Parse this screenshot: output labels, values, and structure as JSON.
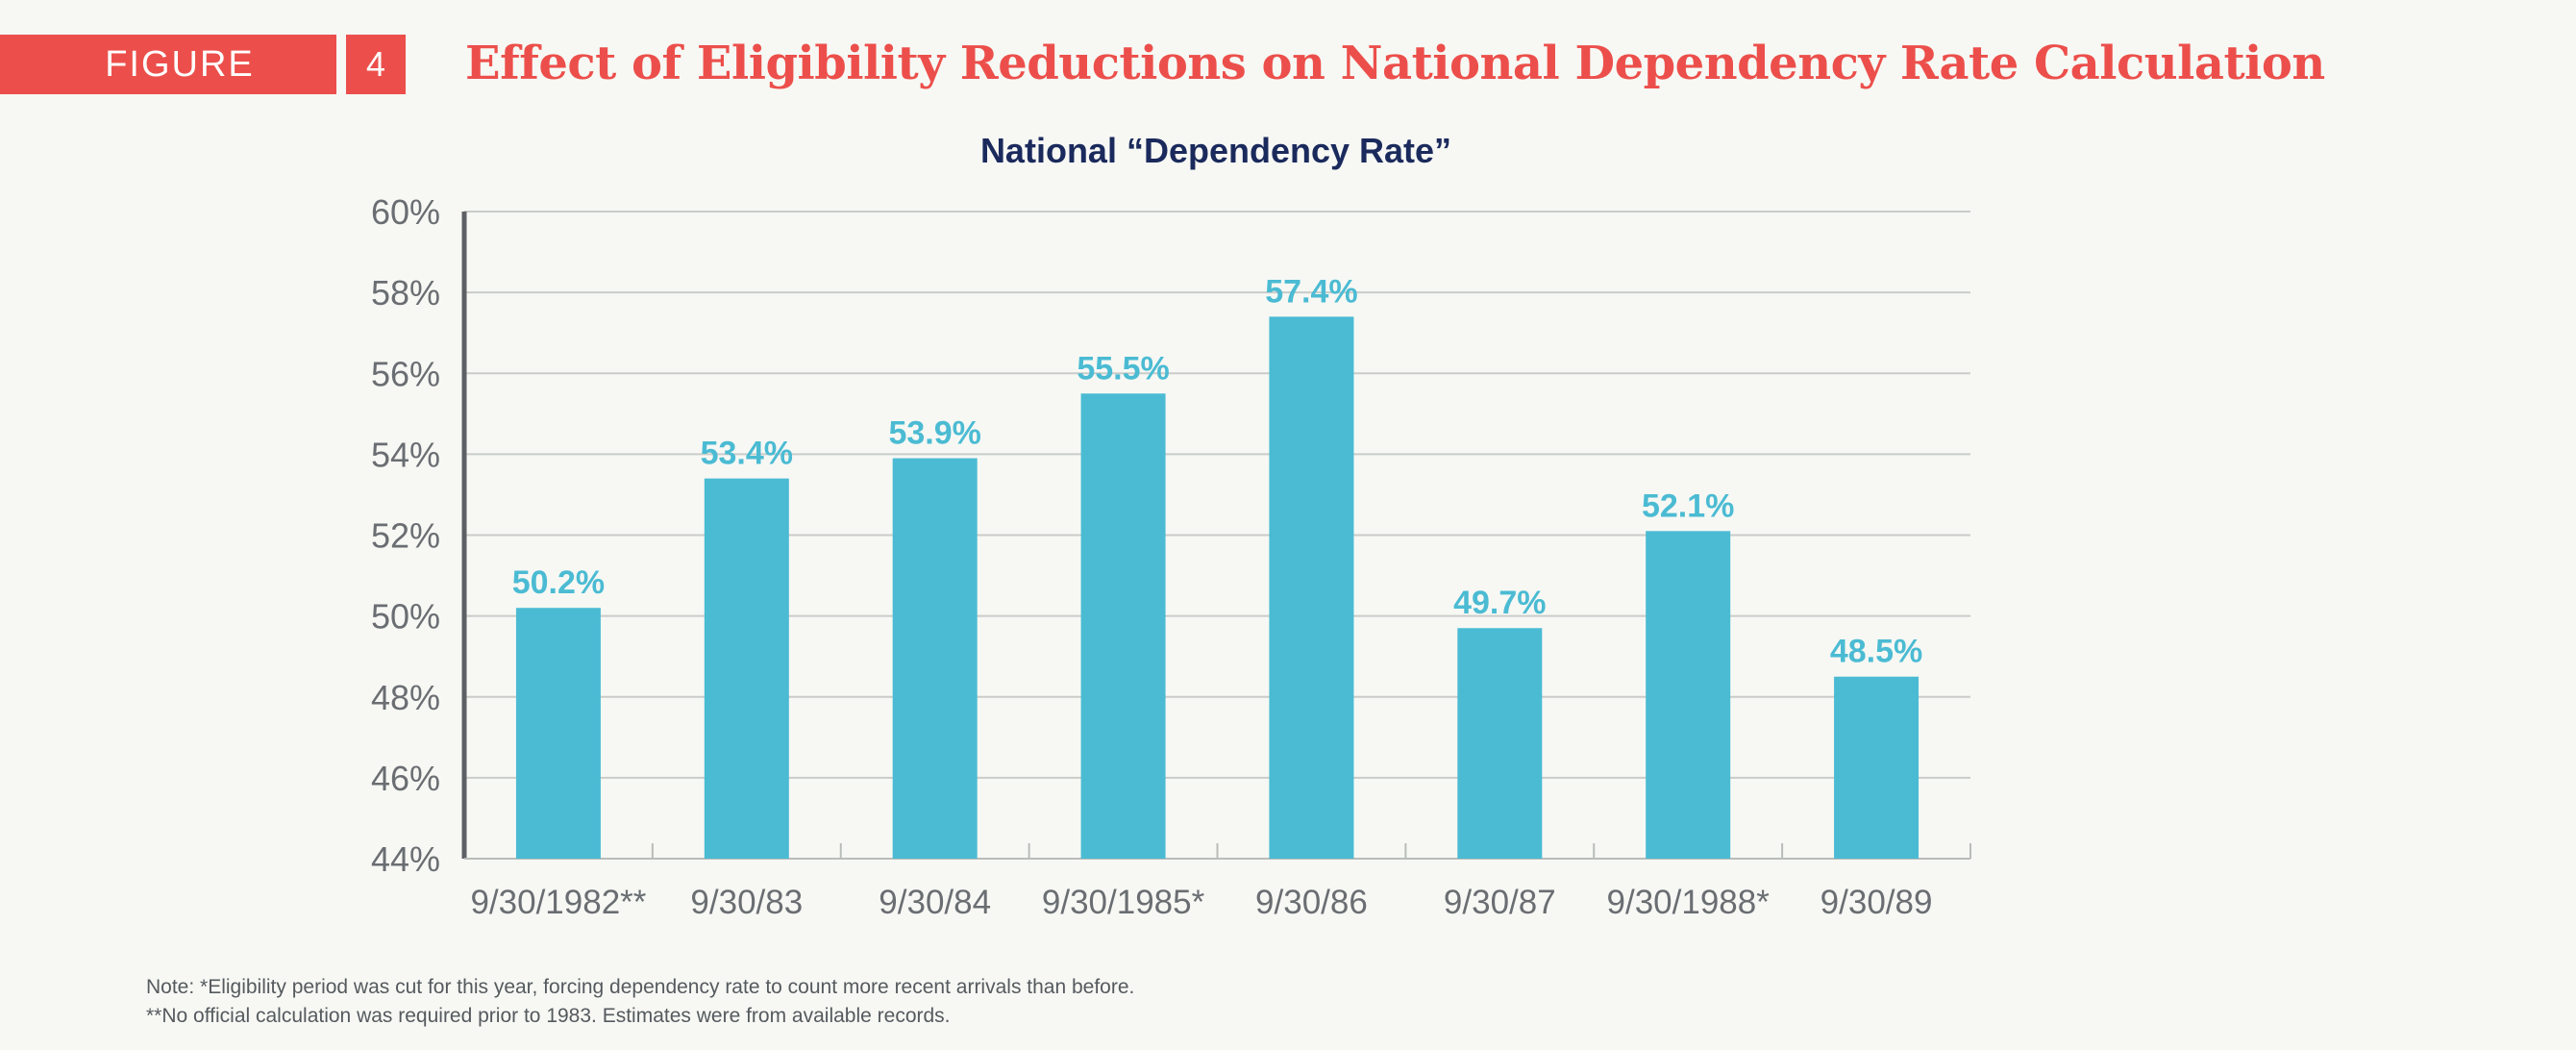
{
  "figure": {
    "label": "FIGURE",
    "number": "4",
    "title": "Effect of Eligibility Reductions on National Dependency Rate Calculation"
  },
  "colors": {
    "accent": "#ec4f4b",
    "bar": "#4bbbd3",
    "chart_title": "#1b2a5c",
    "axis_text": "#6a6e72"
  },
  "chart_data": {
    "type": "bar",
    "title": "National “Dependency Rate”",
    "xlabel": "",
    "ylabel": "",
    "categories": [
      "9/30/1982**",
      "9/30/83",
      "9/30/84",
      "9/30/1985*",
      "9/30/86",
      "9/30/87",
      "9/30/1988*",
      "9/30/89"
    ],
    "values": [
      50.2,
      53.4,
      53.9,
      55.5,
      57.4,
      49.7,
      52.1,
      48.5
    ],
    "value_labels": [
      "50.2%",
      "53.4%",
      "53.9%",
      "55.5%",
      "57.4%",
      "49.7%",
      "52.1%",
      "48.5%"
    ],
    "ylim": [
      44,
      60
    ],
    "yticks": [
      44,
      46,
      48,
      50,
      52,
      54,
      56,
      58,
      60
    ],
    "ytick_labels": [
      "44%",
      "46%",
      "48%",
      "50%",
      "52%",
      "54%",
      "56%",
      "58%",
      "60%"
    ],
    "grid": true,
    "legend": "none"
  },
  "notes": [
    "Note: *Eligibility period was cut for this year, forcing dependency rate to count more recent arrivals than before.",
    "**No official calculation was required prior to 1983. Estimates were from available records."
  ]
}
